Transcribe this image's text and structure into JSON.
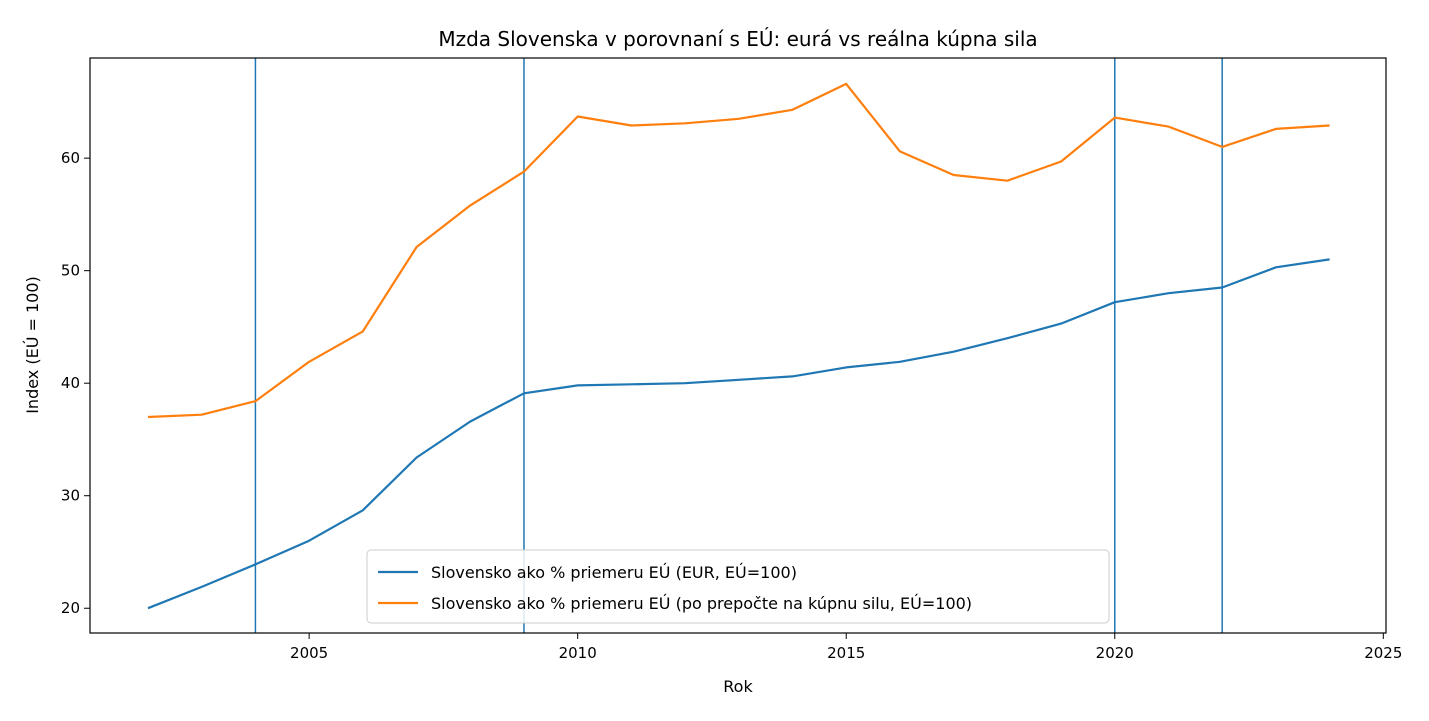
{
  "chart_data": {
    "type": "line",
    "title": "Mzda Slovenska v porovnaní s EÚ: eurá vs reálna kúpna sila",
    "xlabel": "Rok",
    "ylabel": "Index (EÚ = 100)",
    "xlim": [
      2000.92,
      2025.05
    ],
    "ylim": [
      17.8,
      68.9
    ],
    "xticks": [
      2005,
      2010,
      2015,
      2020,
      2025
    ],
    "yticks": [
      20,
      30,
      40,
      50,
      60
    ],
    "grid": false,
    "legend_position": "lower-center",
    "vlines": [
      2004,
      2009,
      2020,
      2022
    ],
    "vline_color": "#1f77b4",
    "x": [
      2002,
      2003,
      2004,
      2005,
      2006,
      2007,
      2008,
      2009,
      2010,
      2011,
      2012,
      2013,
      2014,
      2015,
      2016,
      2017,
      2018,
      2019,
      2020,
      2021,
      2022,
      2023,
      2024
    ],
    "series": [
      {
        "name": "Slovensko ako % priemeru EÚ (EUR, EÚ=100)",
        "color": "#1f77b4",
        "values": [
          20.0,
          21.9,
          23.9,
          26.0,
          28.7,
          33.4,
          36.6,
          39.1,
          39.8,
          39.9,
          40.0,
          40.3,
          40.6,
          41.4,
          41.9,
          42.8,
          44.0,
          45.3,
          47.2,
          48.0,
          48.5,
          50.3,
          51.0
        ]
      },
      {
        "name": "Slovensko ako % priemeru EÚ (po prepočte na kúpnu silu, EÚ=100)",
        "color": "#ff7f0e",
        "values": [
          37.0,
          37.2,
          38.4,
          41.9,
          44.6,
          52.1,
          55.8,
          58.8,
          63.7,
          62.9,
          63.1,
          63.5,
          64.3,
          66.6,
          60.6,
          58.5,
          58.0,
          59.7,
          63.6,
          62.8,
          61.0,
          62.6,
          62.9
        ]
      }
    ]
  }
}
